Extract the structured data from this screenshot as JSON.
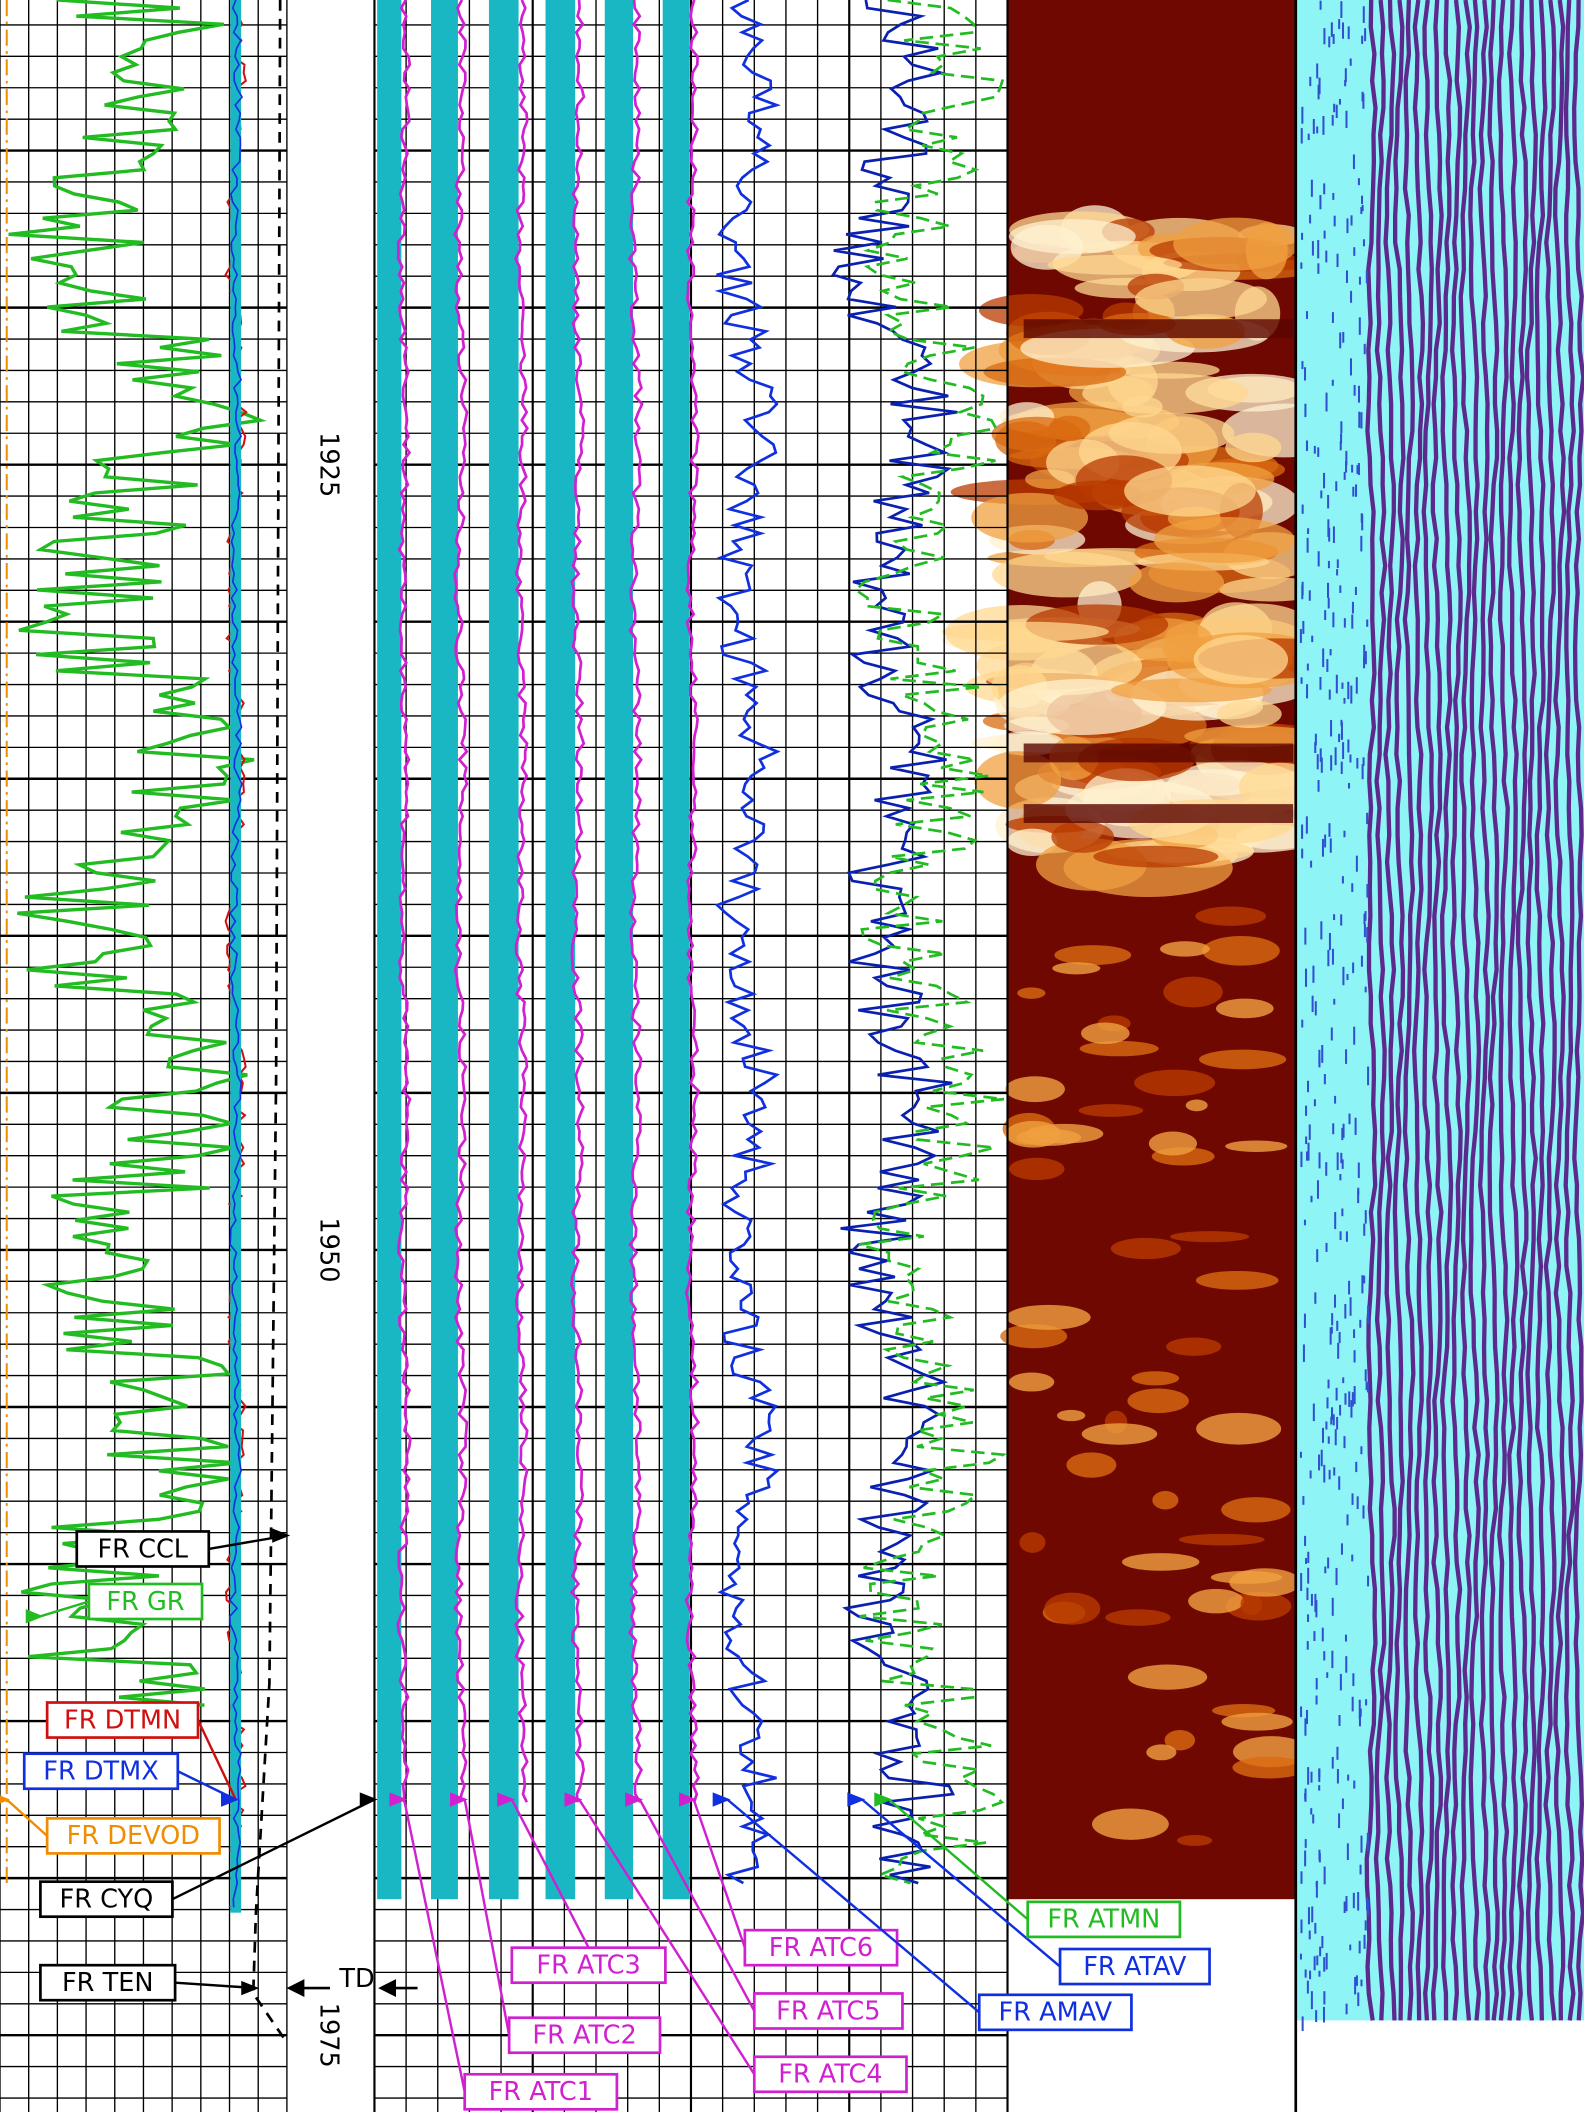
{
  "depth_labels": [
    "1925",
    "1950",
    "1975"
  ],
  "td_label": "TD",
  "curve_labels": [
    "FR CCL",
    "FR GR",
    "FR DTMN",
    "FR DTMX",
    "FR DEVOD",
    "FR CYQ",
    "FR TEN",
    "FR ATC1",
    "FR ATC2",
    "FR ATC3",
    "FR ATC4",
    "FR ATC5",
    "FR ATC6",
    "FR AMAV",
    "FR ATAV",
    "FR ATMN"
  ]
}
